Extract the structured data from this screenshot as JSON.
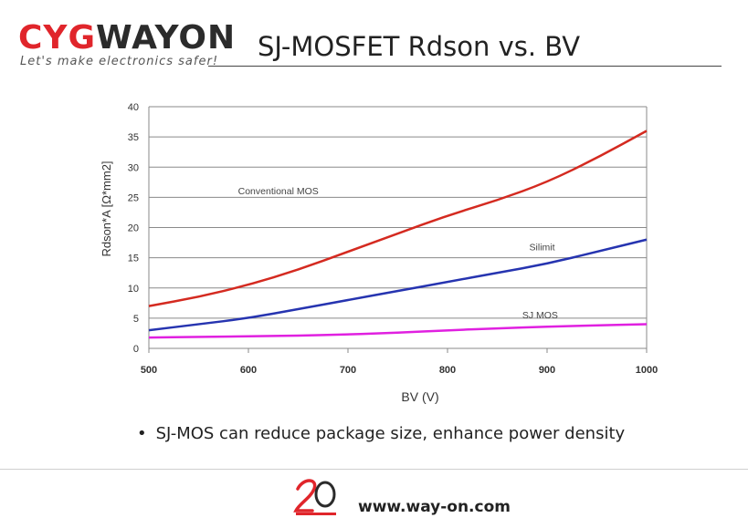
{
  "header": {
    "logo_cyg": "CYG",
    "logo_wayon": "WAYON",
    "tagline": "Let's make electronics safer!",
    "title": "SJ-MOSFET Rdson vs. BV"
  },
  "chart_data": {
    "type": "line",
    "title": "",
    "xlabel": "BV (V)",
    "ylabel": "Rdson*A [Ω*mm2]",
    "xlim": [
      500,
      1000
    ],
    "ylim": [
      0,
      40
    ],
    "x_ticks": [
      500,
      600,
      700,
      800,
      900,
      1000
    ],
    "y_ticks": [
      0,
      5,
      10,
      15,
      20,
      25,
      30,
      35,
      40
    ],
    "grid": "horizontal",
    "series": [
      {
        "name": "Conventional MOS",
        "color": "#d42a20",
        "label_at": [
          630,
          25.5
        ],
        "x": [
          500,
          550,
          600,
          650,
          700,
          750,
          800,
          850,
          900,
          950,
          1000
        ],
        "y": [
          7,
          8.5,
          10.5,
          13,
          16,
          19,
          22,
          24.5,
          27.5,
          31.5,
          36
        ]
      },
      {
        "name": "Silimit",
        "color": "#2634b0",
        "label_at": [
          895,
          16.2
        ],
        "x": [
          500,
          550,
          600,
          650,
          700,
          750,
          800,
          850,
          900,
          950,
          1000
        ],
        "y": [
          3,
          4,
          5,
          6.5,
          8,
          9.5,
          11,
          12.5,
          14,
          16,
          18
        ]
      },
      {
        "name": "SJ MOS",
        "color": "#e020e0",
        "label_at": [
          893,
          5
        ],
        "x": [
          500,
          550,
          600,
          650,
          700,
          750,
          800,
          850,
          900,
          950,
          1000
        ],
        "y": [
          1.8,
          1.9,
          2,
          2.1,
          2.3,
          2.6,
          3,
          3.3,
          3.6,
          3.8,
          4
        ]
      }
    ]
  },
  "bullet": {
    "dot": "•",
    "text": "SJ-MOS can reduce package size, enhance power density"
  },
  "footer": {
    "url": "www.way-on.com"
  },
  "colors": {
    "brand_red": "#e0252b",
    "brand_dark": "#2b2b2b"
  }
}
